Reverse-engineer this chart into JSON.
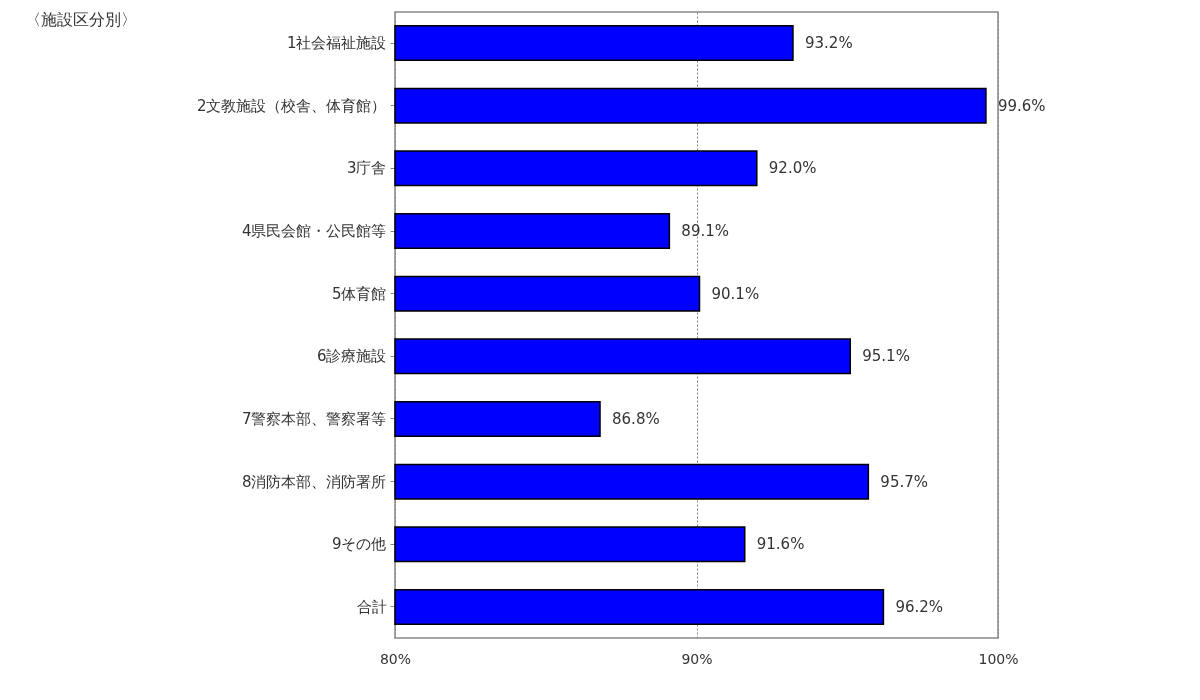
{
  "chart_data": {
    "type": "bar",
    "orientation": "horizontal",
    "title": "〈施設区分別〉",
    "categories": [
      "1社会福祉施設",
      "2文教施設（校舎、体育館）",
      "3庁舎",
      "4県民会館・公民館等",
      "5体育館",
      "6診療施設",
      "7警察本部、警察署等",
      "8消防本部、消防署所",
      "9その他",
      "合計"
    ],
    "values": [
      93.2,
      99.6,
      92.0,
      89.1,
      90.1,
      95.1,
      86.8,
      95.7,
      91.6,
      96.2
    ],
    "value_labels": [
      "93.2%",
      "99.6%",
      "92.0%",
      "89.1%",
      "90.1%",
      "95.1%",
      "86.8%",
      "95.7%",
      "91.6%",
      "96.2%"
    ],
    "color": "#0000ff",
    "xlim": [
      80,
      100
    ],
    "xticks": [
      {
        "value": 80,
        "label": "80%"
      },
      {
        "value": 90,
        "label": "90%"
      },
      {
        "value": 100,
        "label": "100%"
      }
    ],
    "grid": "x"
  }
}
